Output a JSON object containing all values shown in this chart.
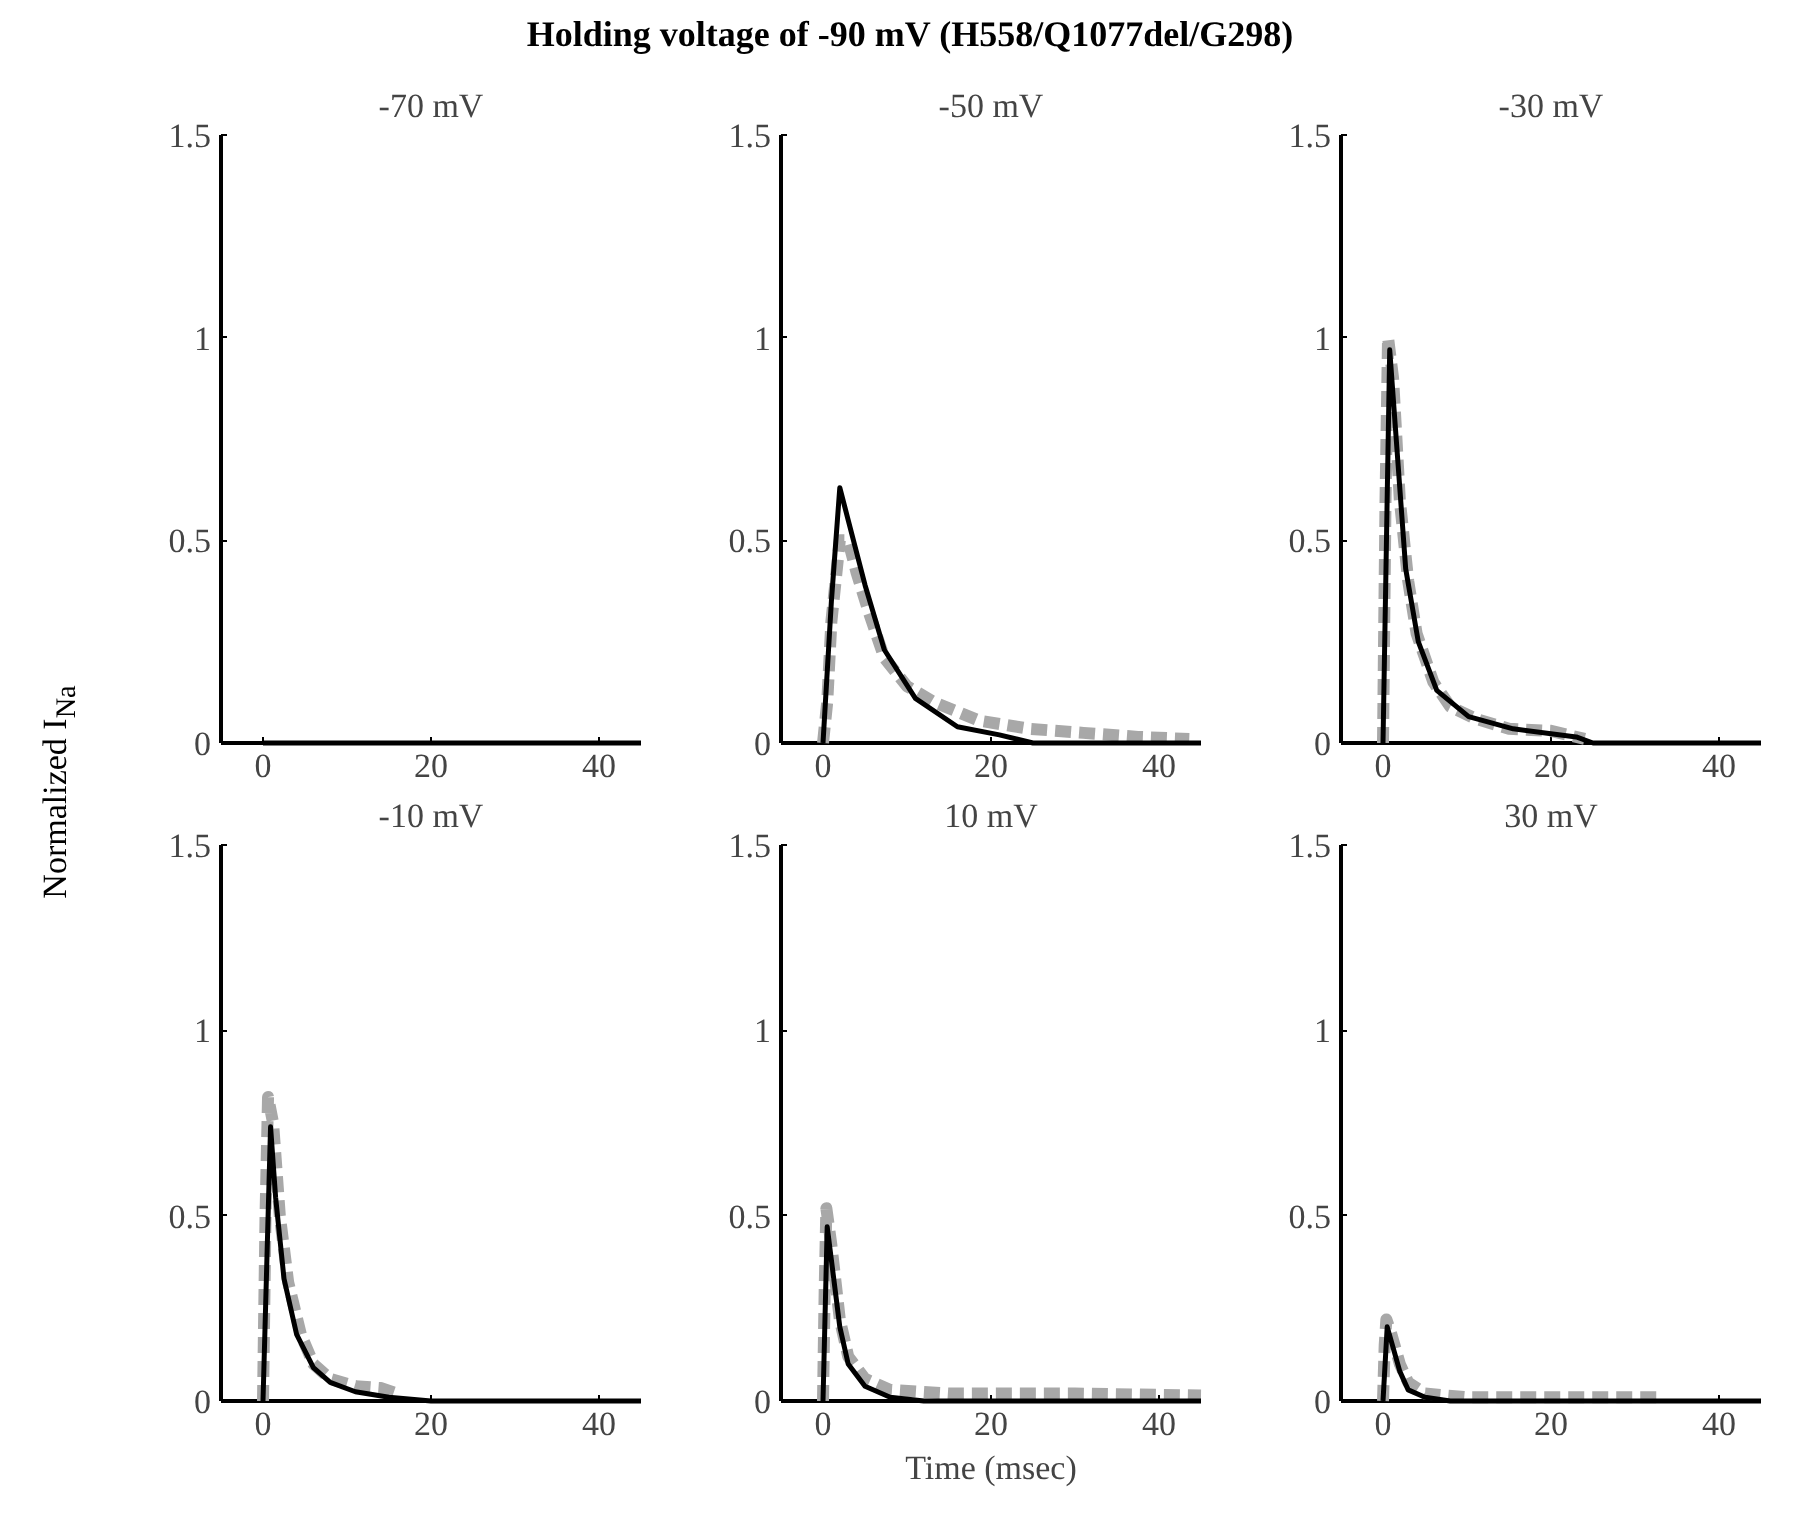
{
  "chart_data": [
    {
      "type": "line",
      "title": "-70 mV",
      "annotations": [
        "Holding voltage of -90 mV (H558/Q1077del/G298)"
      ],
      "ylabel": "Normalized I$_{Na}$",
      "xlim": [
        -5,
        45
      ],
      "ylim": [
        0,
        1.5
      ],
      "xticks": [
        0,
        20,
        40
      ],
      "yticks": [
        0,
        0.5,
        1,
        1.5
      ],
      "grid": false,
      "series": [
        {
          "color": "#000000",
          "line_style": "solid",
          "x": [
            0,
            45
          ],
          "values": [
            0,
            0
          ]
        }
      ]
    },
    {
      "type": "line",
      "title": "-50 mV",
      "xlim": [
        -5,
        45
      ],
      "ylim": [
        0,
        1.5
      ],
      "xticks": [
        0,
        20,
        40
      ],
      "yticks": [
        0,
        0.5,
        1,
        1.5
      ],
      "grid": false,
      "series": [
        {
          "color": "#a8a8a8",
          "line_style": "dashed",
          "x": [
            0,
            0.5,
            1,
            2,
            3,
            4,
            5.5,
            7.3,
            10,
            13.3,
            18.6,
            24.6,
            31,
            37.5,
            43.6
          ],
          "values": [
            0,
            0.1,
            0.3,
            0.5,
            0.5,
            0.42,
            0.32,
            0.21,
            0.14,
            0.1,
            0.055,
            0.035,
            0.025,
            0.015,
            0.01
          ]
        },
        {
          "color": "#000000",
          "line_style": "solid",
          "x": [
            0,
            1,
            2,
            3,
            5,
            7.3,
            11,
            16,
            21,
            25,
            45
          ],
          "values": [
            0,
            0.35,
            0.63,
            0.55,
            0.39,
            0.23,
            0.11,
            0.04,
            0.02,
            0,
            0
          ]
        }
      ]
    },
    {
      "type": "line",
      "title": "-30 mV",
      "xlim": [
        -5,
        45
      ],
      "ylim": [
        0,
        1.5
      ],
      "xticks": [
        0,
        20,
        40
      ],
      "yticks": [
        0,
        0.5,
        1,
        1.5
      ],
      "grid": false,
      "series": [
        {
          "color": "#a8a8a8",
          "line_style": "dashed",
          "x": [
            0,
            0.3,
            0.6,
            1.2,
            2,
            3,
            4,
            6,
            8,
            11,
            15,
            20,
            24
          ],
          "values": [
            0,
            0.6,
            1.0,
            0.9,
            0.6,
            0.4,
            0.27,
            0.15,
            0.09,
            0.06,
            0.035,
            0.03,
            0.01
          ]
        },
        {
          "color": "#000000",
          "line_style": "solid",
          "x": [
            0,
            0.8,
            2.7,
            4.2,
            6.4,
            10.2,
            15.5,
            23,
            25,
            45
          ],
          "values": [
            0,
            0.97,
            0.43,
            0.25,
            0.13,
            0.065,
            0.035,
            0.015,
            0,
            0
          ]
        }
      ]
    },
    {
      "type": "line",
      "title": "-10 mV",
      "xlim": [
        -5,
        45
      ],
      "ylim": [
        0,
        1.5
      ],
      "xticks": [
        0,
        20,
        40
      ],
      "yticks": [
        0,
        0.5,
        1,
        1.5
      ],
      "grid": false,
      "series": [
        {
          "color": "#a8a8a8",
          "line_style": "dashed",
          "x": [
            0,
            0.3,
            0.6,
            1.2,
            2,
            3,
            4.5,
            6,
            8,
            11,
            14,
            16
          ],
          "values": [
            0,
            0.5,
            0.82,
            0.75,
            0.5,
            0.32,
            0.18,
            0.1,
            0.06,
            0.04,
            0.035,
            0.02
          ]
        },
        {
          "color": "#000000",
          "line_style": "solid",
          "x": [
            0,
            0.9,
            1.5,
            2.5,
            4,
            6,
            8,
            11,
            15,
            20,
            45
          ],
          "values": [
            0,
            0.74,
            0.55,
            0.33,
            0.18,
            0.09,
            0.05,
            0.025,
            0.01,
            0,
            0
          ]
        }
      ]
    },
    {
      "type": "line",
      "title": "10 mV",
      "xlabel": "Time (msec)",
      "xlim": [
        -5,
        45
      ],
      "ylim": [
        0,
        1.5
      ],
      "xticks": [
        0,
        20,
        40
      ],
      "yticks": [
        0,
        0.5,
        1,
        1.5
      ],
      "grid": false,
      "series": [
        {
          "color": "#a8a8a8",
          "line_style": "dashed",
          "x": [
            0,
            0.2,
            0.4,
            1,
            2,
            3,
            5,
            8,
            15,
            30,
            45
          ],
          "values": [
            0,
            0.3,
            0.52,
            0.42,
            0.22,
            0.12,
            0.06,
            0.03,
            0.02,
            0.02,
            0.015
          ]
        },
        {
          "color": "#000000",
          "line_style": "solid",
          "x": [
            0,
            0.5,
            1,
            2,
            3,
            5,
            8,
            12,
            45
          ],
          "values": [
            0,
            0.47,
            0.38,
            0.2,
            0.1,
            0.04,
            0.01,
            0,
            0
          ]
        }
      ]
    },
    {
      "type": "line",
      "title": "30 mV",
      "xlim": [
        -5,
        45
      ],
      "ylim": [
        0,
        1.5
      ],
      "xticks": [
        0,
        20,
        40
      ],
      "yticks": [
        0,
        0.5,
        1,
        1.5
      ],
      "grid": false,
      "series": [
        {
          "color": "#a8a8a8",
          "line_style": "dashed",
          "x": [
            0,
            0.2,
            0.4,
            1,
            2,
            3,
            5,
            10,
            33
          ],
          "values": [
            0,
            0.15,
            0.22,
            0.18,
            0.1,
            0.05,
            0.02,
            0.01,
            0.01
          ]
        },
        {
          "color": "#000000",
          "line_style": "solid",
          "x": [
            0,
            0.5,
            1,
            2,
            3,
            5,
            8,
            45
          ],
          "values": [
            0,
            0.2,
            0.16,
            0.08,
            0.03,
            0.01,
            0,
            0
          ]
        }
      ]
    }
  ]
}
